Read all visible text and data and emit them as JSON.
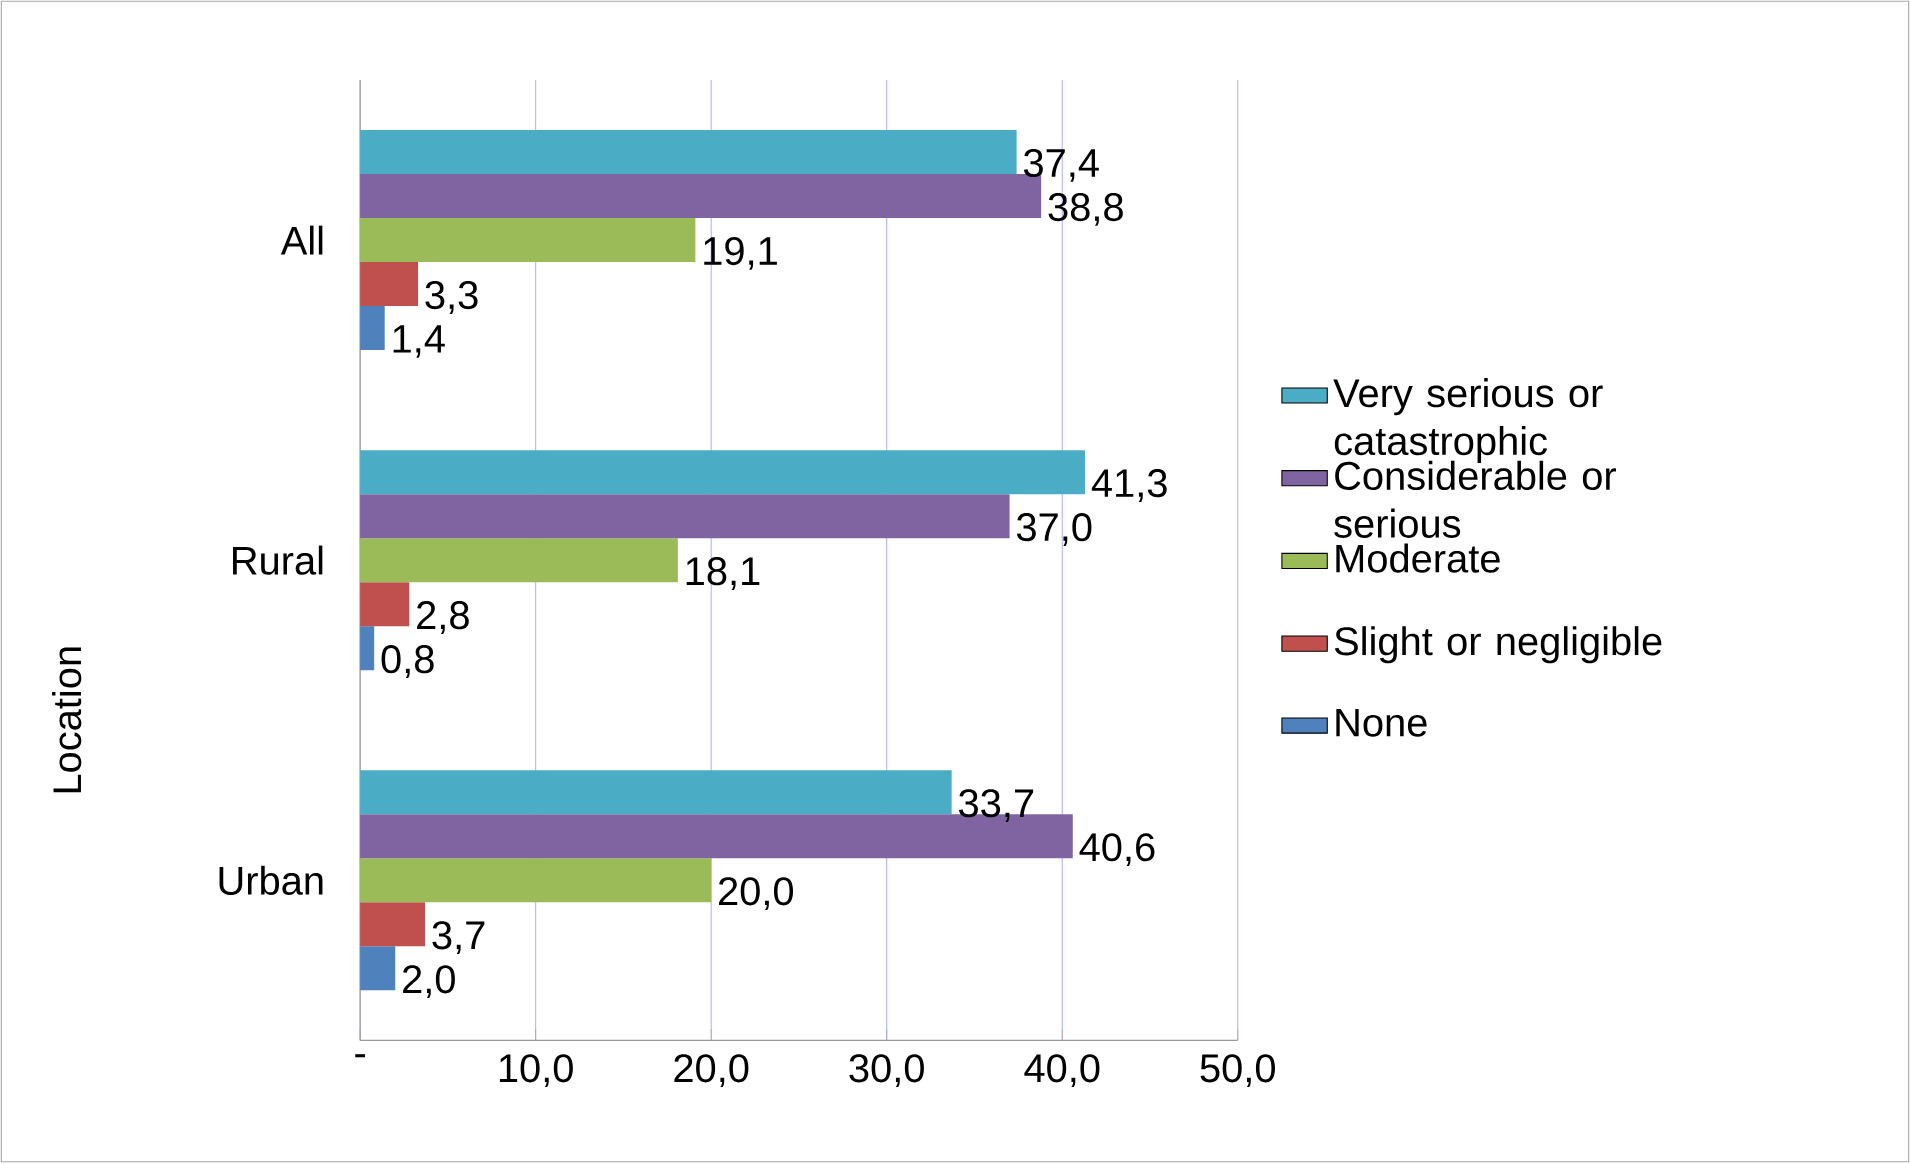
{
  "chart_data": {
    "type": "bar",
    "orientation": "horizontal",
    "categories": [
      "All",
      "Rural",
      "Urban"
    ],
    "series": [
      {
        "name": "Very serious or catastrophic",
        "color": "#4bacc6",
        "values": [
          37.4,
          41.3,
          33.7
        ],
        "value_labels": [
          "37,4",
          "41,3",
          "33,7"
        ]
      },
      {
        "name": "Considerable or serious",
        "color": "#8064a2",
        "values": [
          38.8,
          37.0,
          40.6
        ],
        "value_labels": [
          "38,8",
          "37,0",
          "40,6"
        ]
      },
      {
        "name": "Moderate",
        "color": "#9bbb59",
        "values": [
          19.1,
          18.1,
          20.0
        ],
        "value_labels": [
          "19,1",
          "18,1",
          "20,0"
        ]
      },
      {
        "name": "Slight or negligible",
        "color": "#c0504d",
        "values": [
          3.3,
          2.8,
          3.7
        ],
        "value_labels": [
          "3,3",
          "2,8",
          "3,7"
        ]
      },
      {
        "name": "None",
        "color": "#4f81bd",
        "values": [
          1.4,
          0.8,
          2.0
        ],
        "value_labels": [
          "1,4",
          "0,8",
          "2,0"
        ]
      }
    ],
    "xlim": [
      0,
      50
    ],
    "xticks": [
      {
        "value": 0,
        "label": "-"
      },
      {
        "value": 10,
        "label": "10,0"
      },
      {
        "value": 20,
        "label": "20,0"
      },
      {
        "value": 30,
        "label": "30,0"
      },
      {
        "value": 40,
        "label": "40,0"
      },
      {
        "value": 50,
        "label": "50,0"
      }
    ],
    "grid": "x",
    "legend": "right",
    "annotations": [
      "Location"
    ]
  }
}
